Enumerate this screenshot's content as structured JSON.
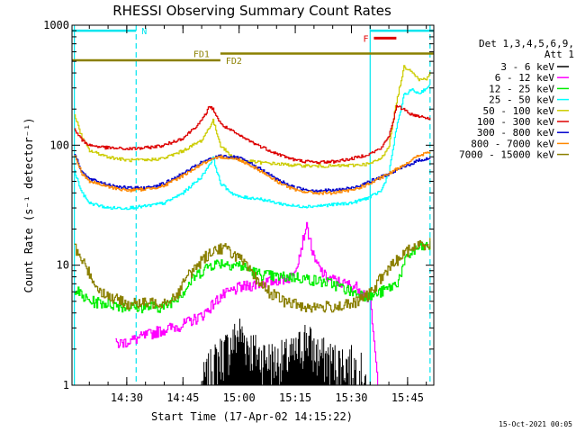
{
  "chart_data": {
    "type": "line",
    "title": "RHESSI Observing Summary Count Rates",
    "xlabel": "Start Time (17-Apr-02 14:15:22)",
    "ylabel": "Count Rate (s⁻¹ detector⁻¹)",
    "y_scale": "log",
    "ylim": [
      1,
      1000
    ],
    "y_ticks": [
      {
        "value": 1,
        "label": "1"
      },
      {
        "value": 10,
        "label": "10"
      },
      {
        "value": 100,
        "label": "100"
      },
      {
        "value": 1000,
        "label": "1000"
      }
    ],
    "xlim": [
      "14:15:22",
      "15:52:00"
    ],
    "x_ticks": [
      "14:30",
      "14:45",
      "15:00",
      "15:15",
      "15:30",
      "15:45"
    ],
    "legend_header": [
      "Det 1,3,4,5,6,9,",
      "Att 1"
    ],
    "legend_placement": "right",
    "timestamp": "15-Oct-2021 00:05",
    "flags": [
      {
        "label": "N",
        "color": "#00e5ee",
        "intervals": [
          [
            "14:15:22",
            "14:32:30"
          ],
          [
            "15:35:00",
            "15:52:00"
          ]
        ],
        "level": 900
      },
      {
        "label": "F",
        "color": "#e00000",
        "intervals": [
          [
            "15:36:00",
            "15:42:00"
          ]
        ],
        "level": 780
      },
      {
        "label": "FD1",
        "color": "#8b8000",
        "intervals": [
          [
            "14:55:00",
            "15:52:00"
          ]
        ],
        "level": 580
      },
      {
        "label": "FD2",
        "color": "#8b8000",
        "intervals": [
          [
            "14:15:22",
            "14:55:00"
          ]
        ],
        "level": 510
      }
    ],
    "vertical_markers": [
      {
        "time": "14:16:00",
        "color": "#00e5ee",
        "style": "solid"
      },
      {
        "time": "14:32:30",
        "color": "#00e5ee",
        "style": "dashed"
      },
      {
        "time": "15:35:00",
        "color": "#00e5ee",
        "style": "solid"
      },
      {
        "time": "15:51:00",
        "color": "#00e5ee",
        "style": "dashed"
      }
    ],
    "series": [
      {
        "name": "3 - 6 keV",
        "color": "#000000",
        "mode": "spiky",
        "points": [
          [
            "14:50:00",
            1.0
          ],
          [
            "14:53:00",
            1.5
          ],
          [
            "14:55:00",
            1.8
          ],
          [
            "14:58:00",
            2.2
          ],
          [
            "15:00:00",
            2.8
          ],
          [
            "15:02:00",
            2.3
          ],
          [
            "15:05:00",
            1.8
          ],
          [
            "15:10:00",
            1.6
          ],
          [
            "15:15:00",
            1.8
          ],
          [
            "15:18:00",
            2.6
          ],
          [
            "15:20:00",
            1.9
          ],
          [
            "15:25:00",
            1.6
          ],
          [
            "15:30:00",
            1.5
          ],
          [
            "15:34:00",
            1.2
          ]
        ]
      },
      {
        "name": "6 - 12 keV",
        "color": "#ff00ff",
        "mode": "noisy",
        "points": [
          [
            "14:27:00",
            2.2
          ],
          [
            "14:32:00",
            2.4
          ],
          [
            "14:38:00",
            2.8
          ],
          [
            "14:45:00",
            3.2
          ],
          [
            "14:50:00",
            3.8
          ],
          [
            "14:55:00",
            5.5
          ],
          [
            "15:00:00",
            6.5
          ],
          [
            "15:05:00",
            7.0
          ],
          [
            "15:10:00",
            7.5
          ],
          [
            "15:14:00",
            8.0
          ],
          [
            "15:16:00",
            12.0
          ],
          [
            "15:18:00",
            22.0
          ],
          [
            "15:20:00",
            11.0
          ],
          [
            "15:23:00",
            8.0
          ],
          [
            "15:28:00",
            7.0
          ],
          [
            "15:32:00",
            6.5
          ],
          [
            "15:35:00",
            5.0
          ],
          [
            "15:37:00",
            1.0
          ]
        ]
      },
      {
        "name": "12 - 25 keV",
        "color": "#00ee00",
        "mode": "noisy",
        "points": [
          [
            "14:16:00",
            6.5
          ],
          [
            "14:18:00",
            5.5
          ],
          [
            "14:20:00",
            5.0
          ],
          [
            "14:25:00",
            4.8
          ],
          [
            "14:30:00",
            4.5
          ],
          [
            "14:40:00",
            4.5
          ],
          [
            "14:45:00",
            6.0
          ],
          [
            "14:48:00",
            8.0
          ],
          [
            "14:52:00",
            10.0
          ],
          [
            "14:55:00",
            10.5
          ],
          [
            "15:00:00",
            10.0
          ],
          [
            "15:05:00",
            8.5
          ],
          [
            "15:10:00",
            8.0
          ],
          [
            "15:15:00",
            8.0
          ],
          [
            "15:20:00",
            7.5
          ],
          [
            "15:25:00",
            7.0
          ],
          [
            "15:30:00",
            6.0
          ],
          [
            "15:35:00",
            5.5
          ],
          [
            "15:38:00",
            6.0
          ],
          [
            "15:42:00",
            7.0
          ],
          [
            "15:45:00",
            12.0
          ],
          [
            "15:48:00",
            14.0
          ],
          [
            "15:51:00",
            14.5
          ]
        ]
      },
      {
        "name": "25 - 50 keV",
        "color": "#00ffff",
        "mode": "noisy",
        "points": [
          [
            "14:16:00",
            60
          ],
          [
            "14:18:00",
            40
          ],
          [
            "14:20:00",
            33
          ],
          [
            "14:25:00",
            30
          ],
          [
            "14:30:00",
            30
          ],
          [
            "14:35:00",
            31
          ],
          [
            "14:40:00",
            33
          ],
          [
            "14:45:00",
            40
          ],
          [
            "14:50:00",
            55
          ],
          [
            "14:53:00",
            78
          ],
          [
            "14:55:00",
            48
          ],
          [
            "14:58:00",
            40
          ],
          [
            "15:00:00",
            37
          ],
          [
            "15:05:00",
            36
          ],
          [
            "15:10:00",
            33
          ],
          [
            "15:15:00",
            31
          ],
          [
            "15:20:00",
            31
          ],
          [
            "15:25:00",
            32
          ],
          [
            "15:30:00",
            33
          ],
          [
            "15:35:00",
            37
          ],
          [
            "15:38:00",
            42
          ],
          [
            "15:40:00",
            60
          ],
          [
            "15:42:00",
            140
          ],
          [
            "15:44:00",
            260
          ],
          [
            "15:46:00",
            290
          ],
          [
            "15:48:00",
            270
          ],
          [
            "15:50:00",
            300
          ],
          [
            "15:51:00",
            310
          ]
        ]
      },
      {
        "name": "50 - 100 keV",
        "color": "#cccc00",
        "mode": "noisy",
        "points": [
          [
            "14:16:00",
            180
          ],
          [
            "14:18:00",
            115
          ],
          [
            "14:20:00",
            90
          ],
          [
            "14:25:00",
            80
          ],
          [
            "14:30:00",
            75
          ],
          [
            "14:35:00",
            75
          ],
          [
            "14:40:00",
            78
          ],
          [
            "14:45:00",
            90
          ],
          [
            "14:50:00",
            110
          ],
          [
            "14:53:00",
            160
          ],
          [
            "14:55:00",
            100
          ],
          [
            "14:58:00",
            80
          ],
          [
            "15:00:00",
            75
          ],
          [
            "15:05:00",
            72
          ],
          [
            "15:10:00",
            70
          ],
          [
            "15:15:00",
            68
          ],
          [
            "15:20:00",
            67
          ],
          [
            "15:25:00",
            67
          ],
          [
            "15:30:00",
            68
          ],
          [
            "15:35:00",
            70
          ],
          [
            "15:38:00",
            78
          ],
          [
            "15:40:00",
            100
          ],
          [
            "15:42:00",
            230
          ],
          [
            "15:44:00",
            450
          ],
          [
            "15:46:00",
            420
          ],
          [
            "15:48:00",
            350
          ],
          [
            "15:50:00",
            360
          ],
          [
            "15:51:00",
            400
          ]
        ]
      },
      {
        "name": "100 - 300 keV",
        "color": "#dd0000",
        "mode": "noisy",
        "points": [
          [
            "14:16:00",
            135
          ],
          [
            "14:18:00",
            110
          ],
          [
            "14:20:00",
            100
          ],
          [
            "14:25:00",
            95
          ],
          [
            "14:30:00",
            93
          ],
          [
            "14:35:00",
            95
          ],
          [
            "14:40:00",
            100
          ],
          [
            "14:45:00",
            115
          ],
          [
            "14:48:00",
            140
          ],
          [
            "14:50:00",
            160
          ],
          [
            "14:52:00",
            210
          ],
          [
            "14:53:00",
            200
          ],
          [
            "14:55:00",
            150
          ],
          [
            "15:00:00",
            120
          ],
          [
            "15:05:00",
            100
          ],
          [
            "15:10:00",
            85
          ],
          [
            "15:15:00",
            75
          ],
          [
            "15:20:00",
            72
          ],
          [
            "15:25:00",
            73
          ],
          [
            "15:30:00",
            77
          ],
          [
            "15:35:00",
            85
          ],
          [
            "15:38:00",
            95
          ],
          [
            "15:40:00",
            120
          ],
          [
            "15:42:00",
            210
          ],
          [
            "15:44:00",
            200
          ],
          [
            "15:46:00",
            180
          ],
          [
            "15:48:00",
            175
          ],
          [
            "15:50:00",
            170
          ],
          [
            "15:51:00",
            165
          ]
        ]
      },
      {
        "name": "300 - 800 keV",
        "color": "#0000cc",
        "mode": "noisy",
        "points": [
          [
            "14:16:00",
            85
          ],
          [
            "14:18:00",
            60
          ],
          [
            "14:20:00",
            52
          ],
          [
            "14:25:00",
            47
          ],
          [
            "14:30:00",
            44
          ],
          [
            "14:35:00",
            44
          ],
          [
            "14:40:00",
            48
          ],
          [
            "14:45:00",
            58
          ],
          [
            "14:50:00",
            72
          ],
          [
            "14:55:00",
            82
          ],
          [
            "15:00:00",
            78
          ],
          [
            "15:05:00",
            65
          ],
          [
            "15:10:00",
            52
          ],
          [
            "15:15:00",
            44
          ],
          [
            "15:20:00",
            42
          ],
          [
            "15:25:00",
            42
          ],
          [
            "15:30:00",
            44
          ],
          [
            "15:35:00",
            50
          ],
          [
            "15:40:00",
            58
          ],
          [
            "15:45:00",
            68
          ],
          [
            "15:48:00",
            75
          ],
          [
            "15:51:00",
            78
          ]
        ]
      },
      {
        "name": "800 - 7000 keV",
        "color": "#ff8800",
        "mode": "noisy",
        "points": [
          [
            "14:16:00",
            82
          ],
          [
            "14:18:00",
            58
          ],
          [
            "14:20:00",
            50
          ],
          [
            "14:25:00",
            45
          ],
          [
            "14:30:00",
            42
          ],
          [
            "14:35:00",
            43
          ],
          [
            "14:40:00",
            46
          ],
          [
            "14:45:00",
            56
          ],
          [
            "14:50:00",
            70
          ],
          [
            "14:55:00",
            80
          ],
          [
            "15:00:00",
            76
          ],
          [
            "15:05:00",
            63
          ],
          [
            "15:10:00",
            50
          ],
          [
            "15:15:00",
            42
          ],
          [
            "15:20:00",
            40
          ],
          [
            "15:25:00",
            40
          ],
          [
            "15:30:00",
            42
          ],
          [
            "15:35:00",
            48
          ],
          [
            "15:40:00",
            58
          ],
          [
            "15:45:00",
            72
          ],
          [
            "15:48:00",
            82
          ],
          [
            "15:51:00",
            88
          ]
        ]
      },
      {
        "name": "7000 - 15000 keV",
        "color": "#8b8000",
        "mode": "noisy",
        "points": [
          [
            "14:16:00",
            14
          ],
          [
            "14:18:00",
            11
          ],
          [
            "14:20:00",
            8.5
          ],
          [
            "14:22:00",
            6.5
          ],
          [
            "14:25:00",
            5.5
          ],
          [
            "14:30:00",
            4.8
          ],
          [
            "14:35:00",
            4.8
          ],
          [
            "14:40:00",
            5.0
          ],
          [
            "14:43:00",
            5.5
          ],
          [
            "14:46:00",
            8.0
          ],
          [
            "14:50:00",
            11.0
          ],
          [
            "14:53:00",
            13.5
          ],
          [
            "14:56:00",
            14.0
          ],
          [
            "15:00:00",
            11.5
          ],
          [
            "15:04:00",
            8.0
          ],
          [
            "15:08:00",
            6.0
          ],
          [
            "15:12:00",
            5.0
          ],
          [
            "15:18:00",
            4.5
          ],
          [
            "15:24:00",
            4.5
          ],
          [
            "15:30:00",
            4.7
          ],
          [
            "15:35:00",
            5.8
          ],
          [
            "15:38:00",
            8.0
          ],
          [
            "15:42:00",
            11.0
          ],
          [
            "15:46:00",
            14.0
          ],
          [
            "15:51:00",
            15.5
          ]
        ]
      }
    ]
  }
}
